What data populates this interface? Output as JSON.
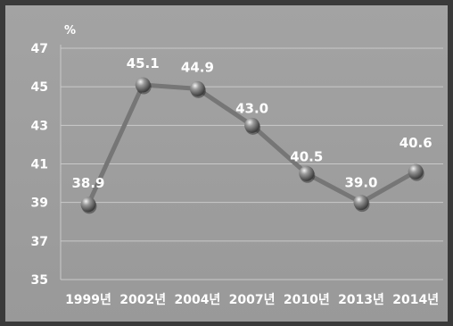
{
  "chart_data": {
    "type": "line",
    "unit": "%",
    "categories": [
      "1999년",
      "2002년",
      "2004년",
      "2007년",
      "2010년",
      "2013년",
      "2014년"
    ],
    "values": [
      38.9,
      45.1,
      44.9,
      43.0,
      40.5,
      39.0,
      40.6
    ],
    "value_labels": [
      "38.9",
      "45.1",
      "44.9",
      "43.0",
      "40.5",
      "39.0",
      "40.6"
    ],
    "yticks": [
      35,
      37,
      39,
      41,
      43,
      45,
      47
    ],
    "ylim": [
      35,
      47
    ],
    "grid": true
  },
  "colors": {
    "background": "#9e9e9e",
    "frame": "#3a3a3a",
    "line": "#767676",
    "grid": "#c9c9c9",
    "marker": "#7a7a7a"
  }
}
